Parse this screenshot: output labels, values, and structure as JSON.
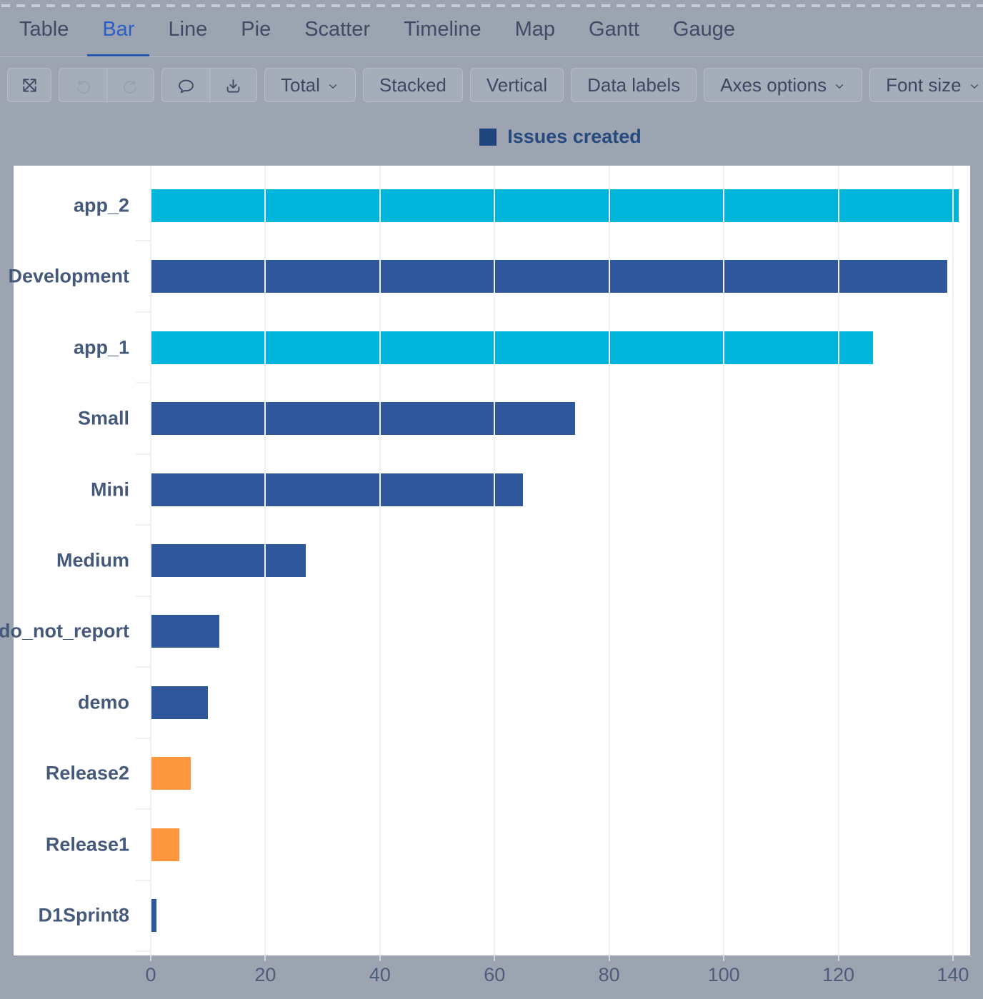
{
  "tabs": {
    "active": "Bar",
    "items": [
      {
        "label": "Table"
      },
      {
        "label": "Bar"
      },
      {
        "label": "Line"
      },
      {
        "label": "Pie"
      },
      {
        "label": "Scatter"
      },
      {
        "label": "Timeline"
      },
      {
        "label": "Map"
      },
      {
        "label": "Gantt"
      },
      {
        "label": "Gauge"
      }
    ]
  },
  "toolbar": {
    "icons": [
      "fullscreen-icon",
      "undo-icon",
      "redo-icon",
      "comment-icon",
      "download-icon"
    ],
    "undo_disabled": true,
    "redo_disabled": true,
    "total_label": "Total",
    "stacked_label": "Stacked",
    "vertical_label": "Vertical",
    "data_labels_label": "Data labels",
    "axes_options_label": "Axes options",
    "font_size_label": "Font size"
  },
  "legend": {
    "label": "Issues created",
    "swatch_color": "#20457C"
  },
  "chart_data": {
    "type": "bar",
    "orientation": "horizontal",
    "title": "",
    "xlabel": "",
    "ylabel": "",
    "grid": true,
    "legend_position": "top",
    "categories": [
      "app_2",
      "Development",
      "app_1",
      "Small",
      "Mini",
      "Medium",
      "do_not_report",
      "demo",
      "Release2",
      "Release1",
      "D1Sprint8"
    ],
    "series": [
      {
        "name": "Issues created",
        "values": [
          141,
          139,
          126,
          74,
          65,
          27,
          12,
          10,
          7,
          5,
          1
        ]
      }
    ],
    "bar_colors": [
      "#00B5DB",
      "#2F589C",
      "#00B5DB",
      "#2F589C",
      "#2F589C",
      "#2F589C",
      "#2F589C",
      "#2F589C",
      "#FD973D",
      "#FD973D",
      "#2F589C"
    ],
    "x_ticks": [
      0,
      20,
      40,
      60,
      80,
      100,
      120,
      140
    ],
    "xlim": [
      0,
      143
    ]
  },
  "colors": {
    "background": "#9CA3B1",
    "panel": "#FFFFFF",
    "accent_blue": "#2C5FC7",
    "bar_blue": "#2F589C",
    "bar_cyan": "#00B5DB",
    "bar_orange": "#FD973D",
    "gridline": "#EFF1F4",
    "axis_text": "#4D5D79"
  }
}
